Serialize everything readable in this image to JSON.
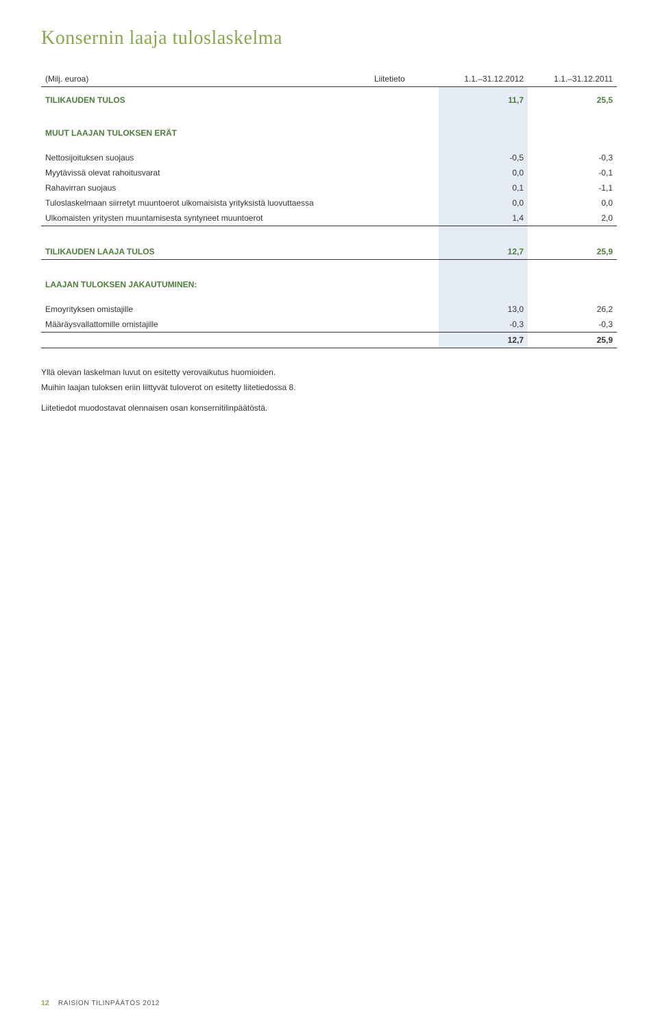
{
  "title": "Konsernin laaja tuloslaskelma",
  "header": {
    "col_label": "(Milj. euroa)",
    "col_note": "Liitetieto",
    "col_y1": "1.1.–31.12.2012",
    "col_y2": "1.1.–31.12.2011"
  },
  "rows": {
    "tilikauden_tulos": {
      "label": "TILIKAUDEN TULOS",
      "y1": "11,7",
      "y2": "25,5"
    },
    "muut_erat_hdr": {
      "label": "MUUT LAAJAN TULOKSEN ERÄT"
    },
    "netto": {
      "label": "Nettosijoituksen suojaus",
      "y1": "-0,5",
      "y2": "-0,3"
    },
    "myyt": {
      "label": "Myytävissä olevat rahoitusvarat",
      "y1": "0,0",
      "y2": "-0,1"
    },
    "raha": {
      "label": "Rahavirran suojaus",
      "y1": "0,1",
      "y2": "-1,1"
    },
    "tulosl": {
      "label": "Tuloslaskelmaan siirretyt muuntoerot ulkomaisista yrityksistä luovuttaessa",
      "y1": "0,0",
      "y2": "0,0"
    },
    "ulko": {
      "label": "Ulkomaisten yritysten muuntamisesta syntyneet muuntoerot",
      "y1": "1,4",
      "y2": "2,0"
    },
    "laaja_tulos": {
      "label": "TILIKAUDEN LAAJA TULOS",
      "y1": "12,7",
      "y2": "25,9"
    },
    "jakaut_hdr": {
      "label": "LAAJAN TULOKSEN JAKAUTUMINEN:"
    },
    "emo": {
      "label": "Emoyrityksen omistajille",
      "y1": "13,0",
      "y2": "26,2"
    },
    "maar": {
      "label": "Määräysvallattomille omistajille",
      "y1": "-0,3",
      "y2": "-0,3"
    },
    "sum": {
      "label": "",
      "y1": "12,7",
      "y2": "25,9"
    }
  },
  "notes": {
    "p1": "Yllä olevan laskelman luvut on esitetty verovaikutus huomioiden.",
    "p2": "Muihin laajan tuloksen eriin liittyvät tuloverot on esitetty liitetiedossa 8.",
    "p3": "Liitetiedot muodostavat olennaisen osan konsernitilinpäätöstä."
  },
  "footer": {
    "page": "12",
    "text": "RAISION TILINPÄÄTÖS 2012"
  }
}
